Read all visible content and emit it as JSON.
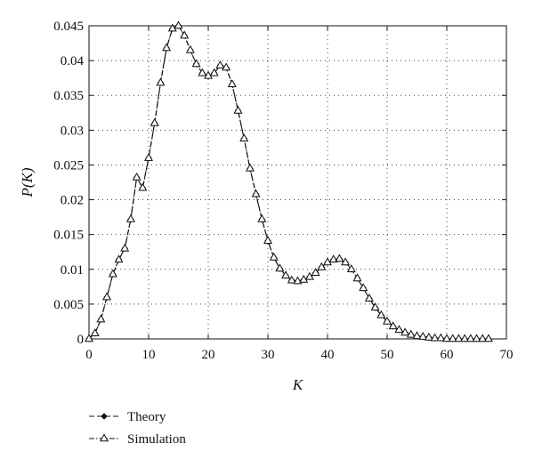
{
  "chart_data": {
    "type": "line",
    "title": "",
    "xlabel": "K",
    "ylabel": "P(K)",
    "xlim": [
      0,
      70
    ],
    "ylim": [
      0,
      0.045
    ],
    "x_ticks": [
      "0",
      "10",
      "20",
      "30",
      "40",
      "50",
      "60",
      "70"
    ],
    "y_ticks": [
      "0",
      "0.005",
      "0.01",
      "0.015",
      "0.02",
      "0.025",
      "0.03",
      "0.035",
      "0.04",
      "0.045"
    ],
    "grid": true,
    "legend_position": "bottom-left",
    "series": [
      {
        "name": "Theory",
        "marker": "diamond",
        "line_style": "dashed",
        "color": "#111111",
        "x": [
          0,
          1,
          2,
          3,
          4,
          5,
          6,
          7,
          8,
          9,
          10,
          11,
          12,
          13,
          14,
          15,
          16,
          17,
          18,
          19,
          20,
          21,
          22,
          23,
          24,
          25,
          26,
          27,
          28,
          29,
          30,
          31,
          32,
          33,
          34,
          35,
          36,
          37,
          38,
          39,
          40,
          41,
          42,
          43,
          44,
          45,
          46,
          47,
          48,
          49,
          50,
          51,
          52,
          53,
          54,
          55,
          56,
          57,
          58,
          59,
          60,
          61,
          62,
          63,
          64,
          65,
          66,
          67
        ],
        "values": [
          0,
          0.0008,
          0.0028,
          0.006,
          0.0093,
          0.0114,
          0.013,
          0.0172,
          0.0232,
          0.0217,
          0.026,
          0.031,
          0.0368,
          0.0418,
          0.0446,
          0.045,
          0.0436,
          0.0415,
          0.0395,
          0.0382,
          0.0378,
          0.0382,
          0.0393,
          0.039,
          0.0366,
          0.0328,
          0.0288,
          0.0245,
          0.0208,
          0.0172,
          0.0141,
          0.0117,
          0.0101,
          0.0091,
          0.0084,
          0.0083,
          0.0085,
          0.0089,
          0.0095,
          0.0103,
          0.011,
          0.0114,
          0.0115,
          0.011,
          0.01,
          0.0087,
          0.0073,
          0.0058,
          0.0045,
          0.0034,
          0.0025,
          0.0018,
          0.0013,
          0.0009,
          0.0006,
          0.0004,
          0.0003,
          0.0002,
          0.0001,
          0.0001,
          0,
          0,
          0,
          0,
          0,
          0,
          0,
          0
        ]
      },
      {
        "name": "Simulation",
        "marker": "triangle",
        "line_style": "dash-dot",
        "color": "#111111",
        "x": [
          0,
          1,
          2,
          3,
          4,
          5,
          6,
          7,
          8,
          9,
          10,
          11,
          12,
          13,
          14,
          15,
          16,
          17,
          18,
          19,
          20,
          21,
          22,
          23,
          24,
          25,
          26,
          27,
          28,
          29,
          30,
          31,
          32,
          33,
          34,
          35,
          36,
          37,
          38,
          39,
          40,
          41,
          42,
          43,
          44,
          45,
          46,
          47,
          48,
          49,
          50,
          51,
          52,
          53,
          54,
          55,
          56,
          57,
          58,
          59,
          60,
          61,
          62,
          63,
          64,
          65,
          66,
          67
        ],
        "values": [
          0,
          0.0008,
          0.0028,
          0.006,
          0.0093,
          0.0114,
          0.013,
          0.0172,
          0.0232,
          0.0217,
          0.026,
          0.031,
          0.0368,
          0.0418,
          0.0446,
          0.045,
          0.0436,
          0.0415,
          0.0395,
          0.0382,
          0.0378,
          0.0382,
          0.0393,
          0.039,
          0.0366,
          0.0328,
          0.0288,
          0.0245,
          0.0208,
          0.0172,
          0.0141,
          0.0117,
          0.0101,
          0.0091,
          0.0084,
          0.0083,
          0.0085,
          0.0089,
          0.0095,
          0.0103,
          0.011,
          0.0114,
          0.0115,
          0.011,
          0.01,
          0.0087,
          0.0073,
          0.0058,
          0.0045,
          0.0034,
          0.0025,
          0.0018,
          0.0013,
          0.0009,
          0.0006,
          0.0004,
          0.0003,
          0.0002,
          0.0001,
          0.0001,
          0,
          0,
          0,
          0,
          0,
          0,
          0,
          0
        ]
      }
    ]
  }
}
